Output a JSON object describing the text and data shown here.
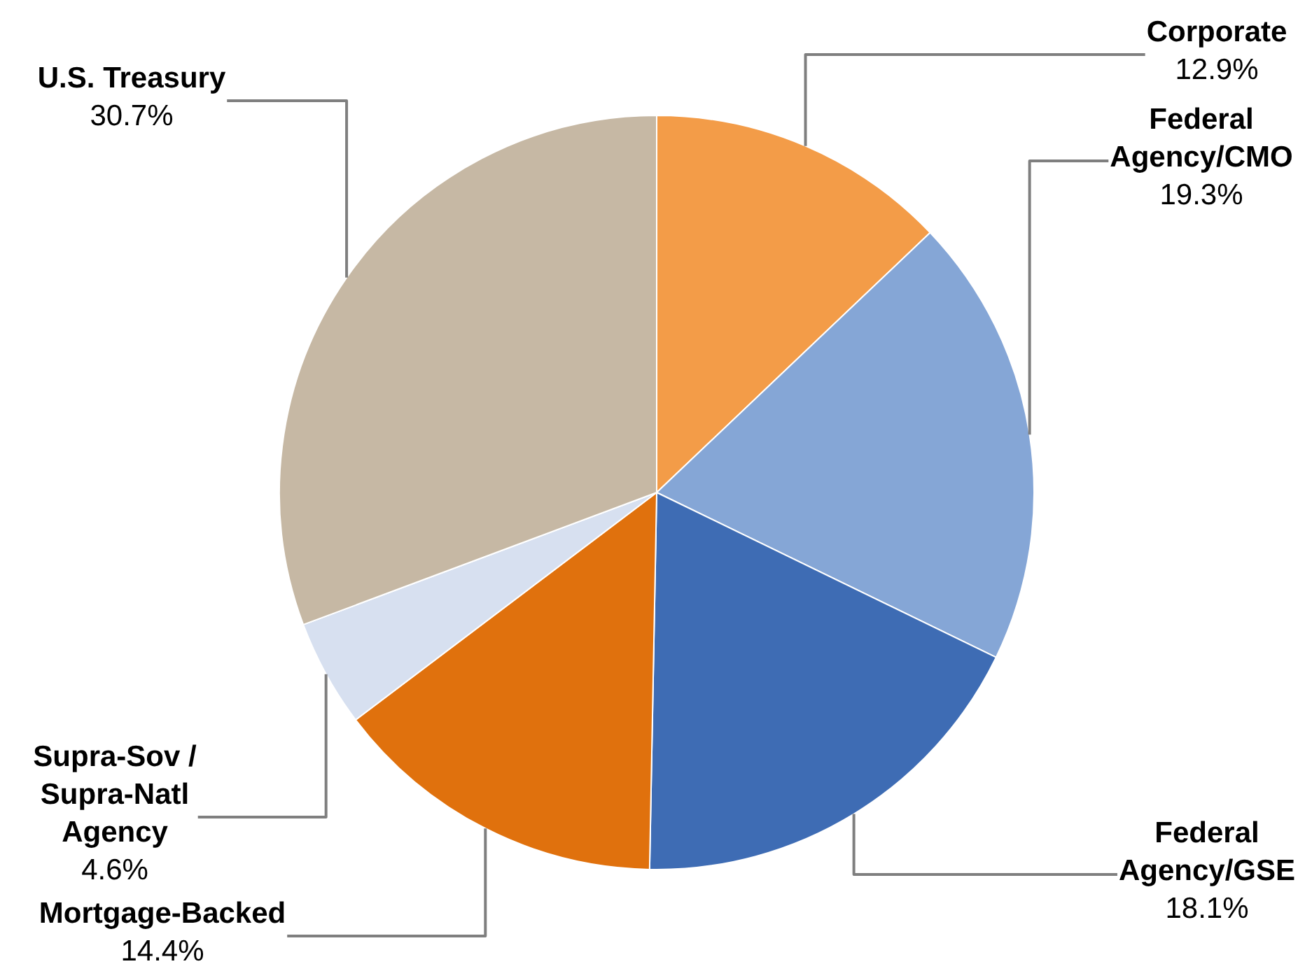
{
  "chart_data": {
    "type": "pie",
    "categories": [
      "Corporate",
      "Federal Agency/CMO",
      "Federal Agency/GSE",
      "Mortgage-Backed",
      "Supra-Sov / Supra-Natl Agency",
      "U.S. Treasury"
    ],
    "values": [
      12.9,
      19.3,
      18.1,
      14.4,
      4.6,
      30.7
    ],
    "value_labels": [
      "12.9%",
      "19.3%",
      "18.1%",
      "14.4%",
      "4.6%",
      "30.7%"
    ],
    "colors": [
      "#f39c48",
      "#85a6d6",
      "#3e6cb4",
      "#e0710d",
      "#d7e0f0",
      "#c6b8a4"
    ]
  }
}
